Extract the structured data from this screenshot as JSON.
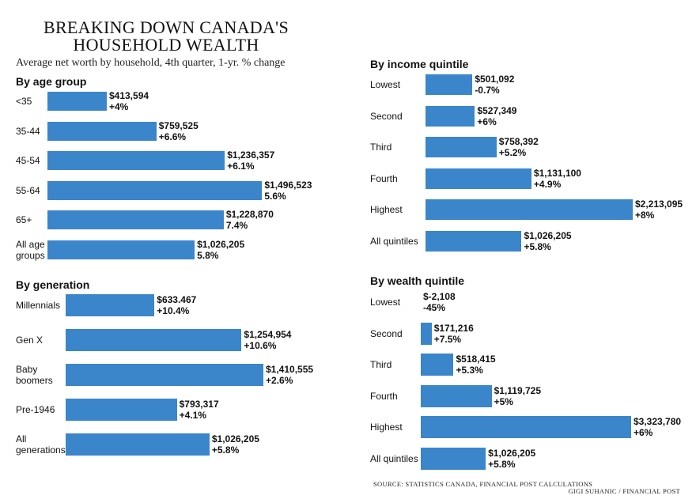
{
  "title": "BREAKING DOWN CANADA'S HOUSEHOLD WEALTH",
  "subtitle": "Average net worth by household, 4th quarter, 1-yr. % change",
  "source": "SOURCE: STATISTICS CANADA, FINANCIAL POST CALCULATIONS",
  "credit": "GIGI SUHANIC / FINANCIAL POST",
  "colors": {
    "bar": "#3b85cb",
    "text": "#111111"
  },
  "chart_data": [
    {
      "type": "bar",
      "orientation": "horizontal",
      "title": "By age group",
      "categories": [
        "<35",
        "35-44",
        "45-54",
        "55-64",
        "65+",
        "All age groups"
      ],
      "values": [
        413594,
        759525,
        1236357,
        1496523,
        1228870,
        1026205
      ],
      "value_labels": [
        "$413,594",
        "$759,525",
        "$1,236,357",
        "$1,496,523",
        "$1,228,870",
        "$1,026,205"
      ],
      "change_labels": [
        "+4%",
        "+6.6%",
        "+6.1%",
        "5.6%",
        "7.4%",
        "5.8%"
      ]
    },
    {
      "type": "bar",
      "orientation": "horizontal",
      "title": "By generation",
      "categories": [
        "Millennials",
        "Gen X",
        "Baby boomers",
        "Pre-1946",
        "All generations"
      ],
      "values": [
        633467,
        1254954,
        1410555,
        793317,
        1026205
      ],
      "value_labels": [
        "$633.467",
        "$1,254,954",
        "$1,410,555",
        "$793,317",
        "$1,026,205"
      ],
      "change_labels": [
        "+10.4%",
        "+10.6%",
        "+2.6%",
        "+4.1%",
        "+5.8%"
      ]
    },
    {
      "type": "bar",
      "orientation": "horizontal",
      "title": "By income quintile",
      "categories": [
        "Lowest",
        "Second",
        "Third",
        "Fourth",
        "Highest",
        "All quintiles"
      ],
      "values": [
        501092,
        527349,
        758392,
        1131100,
        2213095,
        1026205
      ],
      "value_labels": [
        "$501,092",
        "$527,349",
        "$758,392",
        "$1,131,100",
        "$2,213,095",
        "$1,026,205"
      ],
      "change_labels": [
        "-0.7%",
        "+6%",
        "+5.2%",
        "+4.9%",
        "+8%",
        "+5.8%"
      ]
    },
    {
      "type": "bar",
      "orientation": "horizontal",
      "title": "By wealth quintile",
      "categories": [
        "Lowest",
        "Second",
        "Third",
        "Fourth",
        "Highest",
        "All quintiles"
      ],
      "values": [
        -2108,
        171216,
        518415,
        1119725,
        3323780,
        1026205
      ],
      "value_labels": [
        "$-2,108",
        "$171,216",
        "$518,415",
        "$1,119,725",
        "$3,323,780",
        "$1,026,205"
      ],
      "change_labels": [
        "-45%",
        "+7.5%",
        "+5.3%",
        "+5%",
        "+6%",
        "+5.8%"
      ]
    }
  ]
}
